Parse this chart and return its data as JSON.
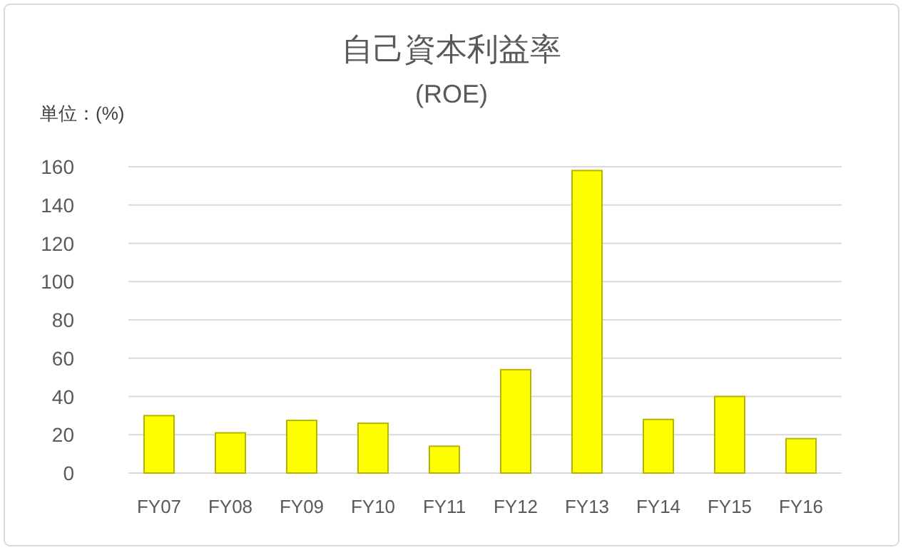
{
  "chart_data": {
    "type": "bar",
    "title": "自己資本利益率",
    "subtitle": "(ROE)",
    "annotations": [
      "単位：(%)"
    ],
    "categories": [
      "FY07",
      "FY08",
      "FY09",
      "FY10",
      "FY11",
      "FY12",
      "FY13",
      "FY14",
      "FY15",
      "FY16"
    ],
    "values": [
      30,
      21,
      27.5,
      26,
      14,
      54,
      158,
      28,
      40,
      18
    ],
    "color": "#ffff00",
    "ylim": [
      0,
      160
    ],
    "yticks": [
      0,
      20,
      40,
      60,
      80,
      100,
      120,
      140,
      160
    ],
    "grid": "y"
  }
}
